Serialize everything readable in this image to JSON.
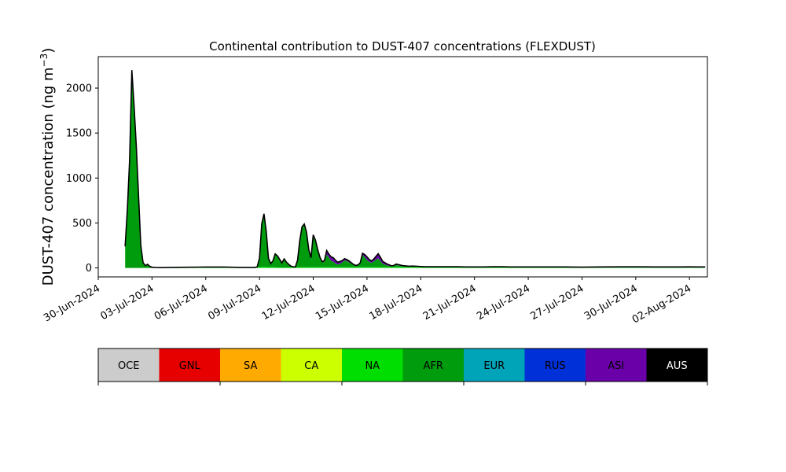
{
  "chart_data": {
    "type": "area",
    "title": "Continental contribution to DUST-407 concentrations (FLEXDUST)",
    "ylabel_main": "DUST-407 concentration (ng m",
    "ylabel_exp": "−3",
    "ylabel_close": ")",
    "xlabel": "",
    "xlim": [
      "2024-06-30",
      "2024-08-03"
    ],
    "ylim": [
      -100,
      2350
    ],
    "yticks": [
      0,
      500,
      1000,
      1500,
      2000
    ],
    "xticks": [
      {
        "date": "2024-06-30",
        "label": "30-Jun-2024"
      },
      {
        "date": "2024-07-03",
        "label": "03-Jul-2024"
      },
      {
        "date": "2024-07-06",
        "label": "06-Jul-2024"
      },
      {
        "date": "2024-07-09",
        "label": "09-Jul-2024"
      },
      {
        "date": "2024-07-12",
        "label": "12-Jul-2024"
      },
      {
        "date": "2024-07-15",
        "label": "15-Jul-2024"
      },
      {
        "date": "2024-07-18",
        "label": "18-Jul-2024"
      },
      {
        "date": "2024-07-21",
        "label": "21-Jul-2024"
      },
      {
        "date": "2024-07-24",
        "label": "24-Jul-2024"
      },
      {
        "date": "2024-07-27",
        "label": "27-Jul-2024"
      },
      {
        "date": "2024-07-30",
        "label": "30-Jul-2024"
      },
      {
        "date": "2024-08-02",
        "label": "02-Aug-2024"
      }
    ],
    "x": [
      "2024-07-01 12:00",
      "2024-07-01 15:00",
      "2024-07-01 18:00",
      "2024-07-01 21:00",
      "2024-07-02 00:00",
      "2024-07-02 03:00",
      "2024-07-02 06:00",
      "2024-07-02 09:00",
      "2024-07-02 12:00",
      "2024-07-02 15:00",
      "2024-07-02 18:00",
      "2024-07-02 21:00",
      "2024-07-03 00:00",
      "2024-07-03 06:00",
      "2024-07-03 12:00",
      "2024-07-04 00:00",
      "2024-07-05 00:00",
      "2024-07-06 00:00",
      "2024-07-07 00:00",
      "2024-07-08 00:00",
      "2024-07-08 12:00",
      "2024-07-08 18:00",
      "2024-07-08 21:00",
      "2024-07-09 00:00",
      "2024-07-09 03:00",
      "2024-07-09 06:00",
      "2024-07-09 09:00",
      "2024-07-09 12:00",
      "2024-07-09 15:00",
      "2024-07-09 18:00",
      "2024-07-09 21:00",
      "2024-07-10 00:00",
      "2024-07-10 03:00",
      "2024-07-10 06:00",
      "2024-07-10 09:00",
      "2024-07-10 12:00",
      "2024-07-10 15:00",
      "2024-07-10 18:00",
      "2024-07-10 21:00",
      "2024-07-11 00:00",
      "2024-07-11 03:00",
      "2024-07-11 06:00",
      "2024-07-11 09:00",
      "2024-07-11 12:00",
      "2024-07-11 15:00",
      "2024-07-11 18:00",
      "2024-07-11 21:00",
      "2024-07-12 00:00",
      "2024-07-12 03:00",
      "2024-07-12 06:00",
      "2024-07-12 09:00",
      "2024-07-12 12:00",
      "2024-07-12 15:00",
      "2024-07-12 18:00",
      "2024-07-12 21:00",
      "2024-07-13 00:00",
      "2024-07-13 03:00",
      "2024-07-13 06:00",
      "2024-07-13 09:00",
      "2024-07-13 12:00",
      "2024-07-13 15:00",
      "2024-07-13 18:00",
      "2024-07-13 21:00",
      "2024-07-14 00:00",
      "2024-07-14 03:00",
      "2024-07-14 06:00",
      "2024-07-14 09:00",
      "2024-07-14 12:00",
      "2024-07-14 15:00",
      "2024-07-14 18:00",
      "2024-07-14 21:00",
      "2024-07-15 00:00",
      "2024-07-15 03:00",
      "2024-07-15 06:00",
      "2024-07-15 09:00",
      "2024-07-15 12:00",
      "2024-07-15 15:00",
      "2024-07-15 18:00",
      "2024-07-15 21:00",
      "2024-07-16 00:00",
      "2024-07-16 03:00",
      "2024-07-16 06:00",
      "2024-07-16 09:00",
      "2024-07-16 12:00",
      "2024-07-16 15:00",
      "2024-07-16 18:00",
      "2024-07-16 21:00",
      "2024-07-17 00:00",
      "2024-07-17 03:00",
      "2024-07-17 06:00",
      "2024-07-17 09:00",
      "2024-07-17 12:00",
      "2024-07-17 18:00",
      "2024-07-18 00:00",
      "2024-07-18 06:00",
      "2024-07-18 12:00",
      "2024-07-18 18:00",
      "2024-07-19 00:00",
      "2024-07-19 12:00",
      "2024-07-20 00:00",
      "2024-07-20 12:00",
      "2024-07-21 00:00",
      "2024-07-21 12:00",
      "2024-07-22 00:00",
      "2024-07-22 12:00",
      "2024-07-23 00:00",
      "2024-07-23 12:00",
      "2024-07-24 00:00",
      "2024-07-24 12:00",
      "2024-07-25 00:00",
      "2024-07-25 12:00",
      "2024-07-26 00:00",
      "2024-07-27 00:00",
      "2024-07-28 00:00",
      "2024-07-29 00:00",
      "2024-07-30 00:00",
      "2024-07-30 12:00",
      "2024-07-31 00:00",
      "2024-07-31 12:00",
      "2024-08-01 00:00",
      "2024-08-01 12:00",
      "2024-08-02 00:00",
      "2024-08-02 12:00",
      "2024-08-02 21:00"
    ],
    "series": [
      {
        "name": "NA",
        "color": "#00dd00",
        "values": [
          0,
          0,
          0,
          0,
          0,
          0,
          0,
          0,
          0,
          0,
          0,
          0,
          0,
          0,
          0,
          3,
          5,
          5,
          5,
          3,
          3,
          3,
          5,
          8,
          10,
          12,
          10,
          8,
          8,
          8,
          6,
          5,
          5,
          5,
          5,
          5,
          5,
          5,
          5,
          5,
          6,
          8,
          8,
          8,
          8,
          8,
          8,
          8,
          8,
          8,
          8,
          8,
          8,
          8,
          8,
          8,
          8,
          8,
          8,
          8,
          8,
          8,
          8,
          8,
          8,
          8,
          8,
          8,
          8,
          8,
          8,
          8,
          8,
          8,
          8,
          8,
          8,
          8,
          8,
          8,
          8,
          8,
          8,
          8,
          8,
          8,
          8,
          8,
          8,
          8,
          8,
          8,
          8,
          5,
          5,
          5,
          5,
          5,
          5,
          5,
          5,
          5,
          5,
          5,
          5,
          5,
          5,
          5,
          5,
          5,
          5,
          5,
          3,
          3,
          3,
          3,
          3,
          3,
          3,
          3,
          3,
          3,
          3,
          3
        ]
      },
      {
        "name": "AFR",
        "color": "#009c0e",
        "values": [
          240,
          650,
          1200,
          2200,
          1800,
          1350,
          800,
          250,
          60,
          25,
          40,
          18,
          8,
          5,
          3,
          3,
          3,
          5,
          5,
          3,
          3,
          3,
          8,
          100,
          480,
          590,
          400,
          100,
          40,
          70,
          150,
          130,
          90,
          50,
          95,
          60,
          35,
          15,
          8,
          5,
          80,
          300,
          450,
          480,
          380,
          180,
          90,
          340,
          280,
          180,
          100,
          55,
          60,
          140,
          110,
          70,
          60,
          40,
          30,
          40,
          55,
          75,
          70,
          55,
          40,
          25,
          15,
          20,
          45,
          140,
          110,
          80,
          60,
          50,
          65,
          85,
          100,
          70,
          40,
          30,
          20,
          15,
          10,
          15,
          25,
          20,
          15,
          12,
          10,
          8,
          8,
          10,
          8,
          8,
          5,
          5,
          5,
          5,
          5,
          5,
          3,
          3,
          3,
          5,
          5,
          3,
          3,
          3,
          3,
          3,
          3,
          3,
          3,
          3,
          3,
          3,
          3,
          3,
          3,
          3,
          3,
          3,
          3,
          3
        ]
      },
      {
        "name": "ASI",
        "color": "#6a00a8",
        "values": [
          0,
          0,
          0,
          0,
          0,
          0,
          0,
          0,
          0,
          0,
          0,
          0,
          0,
          0,
          0,
          0,
          0,
          0,
          0,
          0,
          0,
          0,
          0,
          0,
          0,
          0,
          0,
          0,
          0,
          0,
          0,
          0,
          0,
          0,
          0,
          0,
          0,
          0,
          0,
          0,
          0,
          0,
          0,
          0,
          10,
          15,
          15,
          20,
          20,
          15,
          10,
          5,
          15,
          45,
          35,
          45,
          45,
          35,
          25,
          25,
          20,
          20,
          15,
          15,
          10,
          5,
          5,
          5,
          5,
          15,
          30,
          35,
          25,
          20,
          25,
          35,
          50,
          40,
          25,
          20,
          15,
          10,
          5,
          5,
          10,
          10,
          8,
          5,
          5,
          5,
          3,
          3,
          3,
          3,
          3,
          3,
          3,
          3,
          3,
          3,
          3,
          3,
          3,
          3,
          3,
          3,
          3,
          3,
          3,
          3,
          3,
          3,
          3,
          3,
          3,
          3,
          3,
          3,
          3,
          3,
          3,
          3,
          3,
          3
        ]
      },
      {
        "name": "RUS",
        "color": "#0031d8",
        "values": [
          0,
          0,
          0,
          0,
          0,
          0,
          0,
          0,
          0,
          0,
          0,
          0,
          0,
          0,
          0,
          0,
          0,
          0,
          0,
          0,
          0,
          0,
          0,
          0,
          0,
          0,
          0,
          0,
          0,
          0,
          0,
          0,
          0,
          0,
          0,
          0,
          0,
          0,
          0,
          0,
          0,
          0,
          0,
          0,
          0,
          0,
          0,
          0,
          0,
          0,
          0,
          0,
          0,
          0,
          0,
          0,
          0,
          0,
          0,
          0,
          0,
          0,
          0,
          0,
          0,
          0,
          0,
          0,
          0,
          0,
          0,
          0,
          0,
          0,
          0,
          0,
          0,
          0,
          0,
          0,
          0,
          0,
          0,
          0,
          0,
          0,
          0,
          0,
          0,
          0,
          0,
          0,
          0,
          0,
          0,
          0,
          0,
          0,
          0,
          0,
          0,
          0,
          0,
          0,
          0,
          0,
          0,
          0,
          0,
          0,
          0,
          0,
          0,
          2,
          3,
          3,
          3,
          2,
          2,
          2,
          2,
          3,
          2,
          2
        ]
      }
    ],
    "legend": [
      {
        "label": "OCE",
        "color": "#cccccc",
        "text_color": "#000000"
      },
      {
        "label": "GNL",
        "color": "#e60000",
        "text_color": "#000000"
      },
      {
        "label": "SA",
        "color": "#ffaa00",
        "text_color": "#000000"
      },
      {
        "label": "CA",
        "color": "#ccff00",
        "text_color": "#000000"
      },
      {
        "label": "NA",
        "color": "#00dd00",
        "text_color": "#000000"
      },
      {
        "label": "AFR",
        "color": "#009c0e",
        "text_color": "#000000"
      },
      {
        "label": "EUR",
        "color": "#00a4b8",
        "text_color": "#000000"
      },
      {
        "label": "RUS",
        "color": "#0031d8",
        "text_color": "#000000"
      },
      {
        "label": "ASI",
        "color": "#6a00a8",
        "text_color": "#000000"
      },
      {
        "label": "AUS",
        "color": "#000000",
        "text_color": "#ffffff"
      }
    ],
    "legend_placement": "bottom",
    "grid": false
  }
}
